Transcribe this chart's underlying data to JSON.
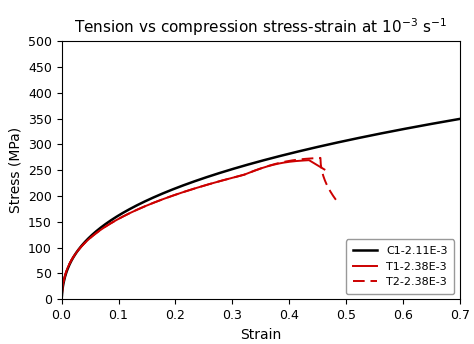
{
  "xlabel": "Strain",
  "ylabel": "Stress (MPa)",
  "xlim": [
    0.0,
    0.7
  ],
  "ylim": [
    0,
    500
  ],
  "xticks": [
    0.0,
    0.1,
    0.2,
    0.3,
    0.4,
    0.5,
    0.6,
    0.7
  ],
  "yticks": [
    0,
    50,
    100,
    150,
    200,
    250,
    300,
    350,
    400,
    450,
    500
  ],
  "legend": [
    {
      "label": "C1-2.11E-3",
      "color": "#000000",
      "linestyle": "solid",
      "linewidth": 1.8
    },
    {
      "label": "T1-2.38E-3",
      "color": "#cc0000",
      "linestyle": "solid",
      "linewidth": 1.4
    },
    {
      "label": "T2-2.38E-3",
      "color": "#cc0000",
      "linestyle": "dashed",
      "linewidth": 1.4
    }
  ],
  "background_color": "#ffffff",
  "title_fontsize": 11,
  "axis_fontsize": 10,
  "tick_fontsize": 9
}
